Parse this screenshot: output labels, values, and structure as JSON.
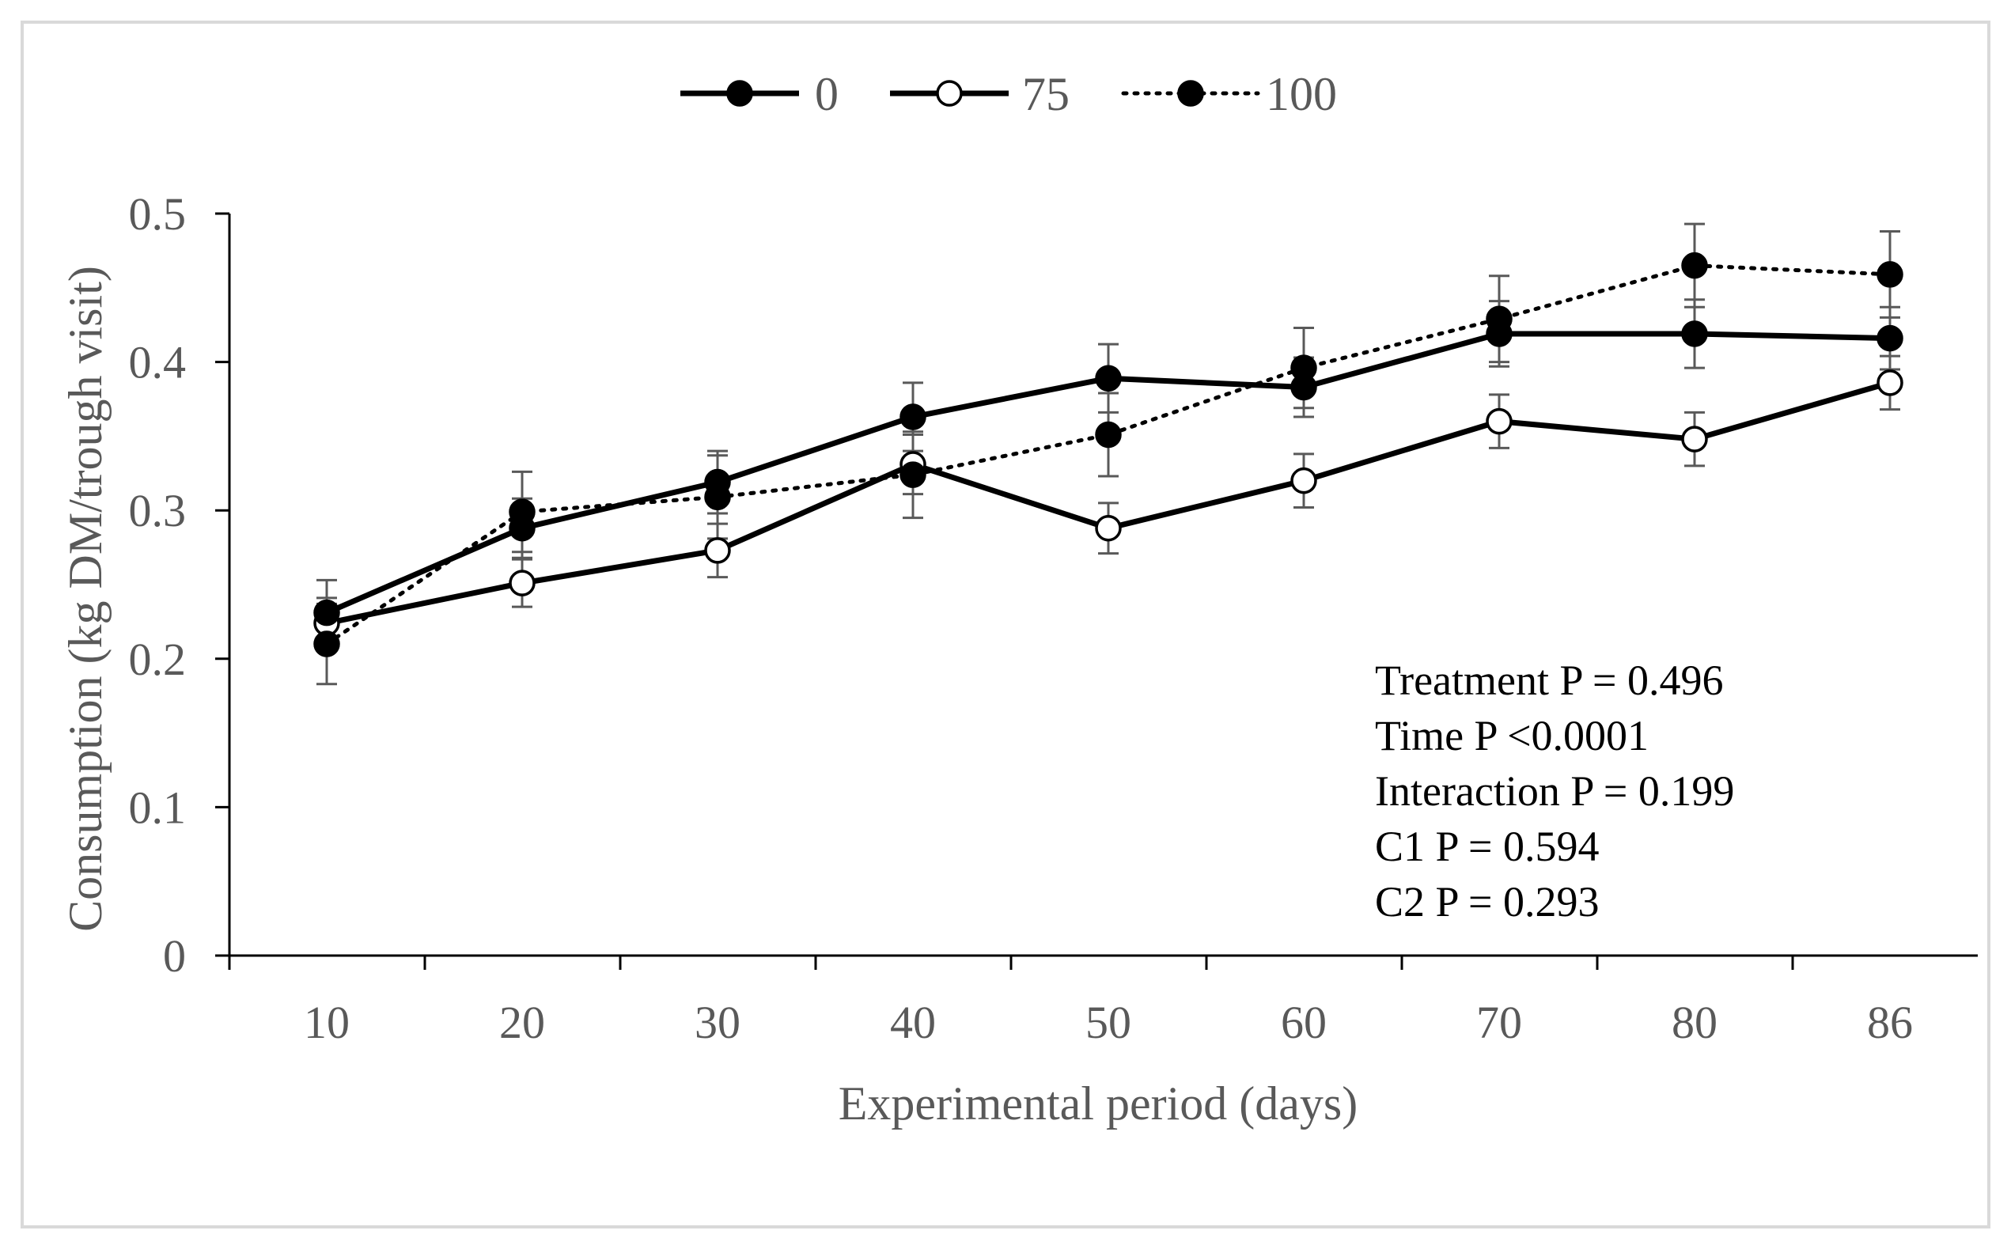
{
  "chart_data": {
    "type": "line",
    "title": "",
    "xlabel": "Experimental period (days)",
    "ylabel": "Consumption (kg DM/trough visit)",
    "categories": [
      "10",
      "20",
      "30",
      "40",
      "50",
      "60",
      "70",
      "80",
      "86"
    ],
    "ylim": [
      0,
      0.5
    ],
    "yticks": [
      "0",
      "0.1",
      "0.2",
      "0.3",
      "0.4",
      "0.5"
    ],
    "grid": false,
    "legend_position": "top-center",
    "series": [
      {
        "name": "0",
        "marker": "filled-circle",
        "line": "solid",
        "values": [
          0.231,
          0.288,
          0.319,
          0.363,
          0.389,
          0.383,
          0.419,
          0.419,
          0.416
        ],
        "errors": [
          0.022,
          0.02,
          0.021,
          0.023,
          0.023,
          0.02,
          0.022,
          0.023,
          0.021
        ]
      },
      {
        "name": "75",
        "marker": "open-circle",
        "line": "solid",
        "values": [
          0.224,
          0.251,
          0.273,
          0.331,
          0.288,
          0.32,
          0.36,
          0.348,
          0.386
        ],
        "errors": [
          0.017,
          0.016,
          0.018,
          0.02,
          0.017,
          0.018,
          0.018,
          0.018,
          0.018
        ]
      },
      {
        "name": "100",
        "marker": "filled-circle",
        "line": "dotted",
        "values": [
          0.21,
          0.299,
          0.309,
          0.324,
          0.351,
          0.396,
          0.429,
          0.465,
          0.459
        ],
        "errors": [
          0.027,
          0.027,
          0.028,
          0.029,
          0.028,
          0.027,
          0.029,
          0.028,
          0.029
        ]
      }
    ],
    "annotations": [
      "Treatment P = 0.496",
      "Time P <0.0001",
      "Interaction P = 0.199",
      "C1 P = 0.594",
      "C2 P = 0.293"
    ],
    "colors": {
      "series_line": "#000000",
      "error_bar": "#595959",
      "axis_text": "#595959",
      "annotation_text": "#000000",
      "frame": "#d9d9d9"
    }
  }
}
